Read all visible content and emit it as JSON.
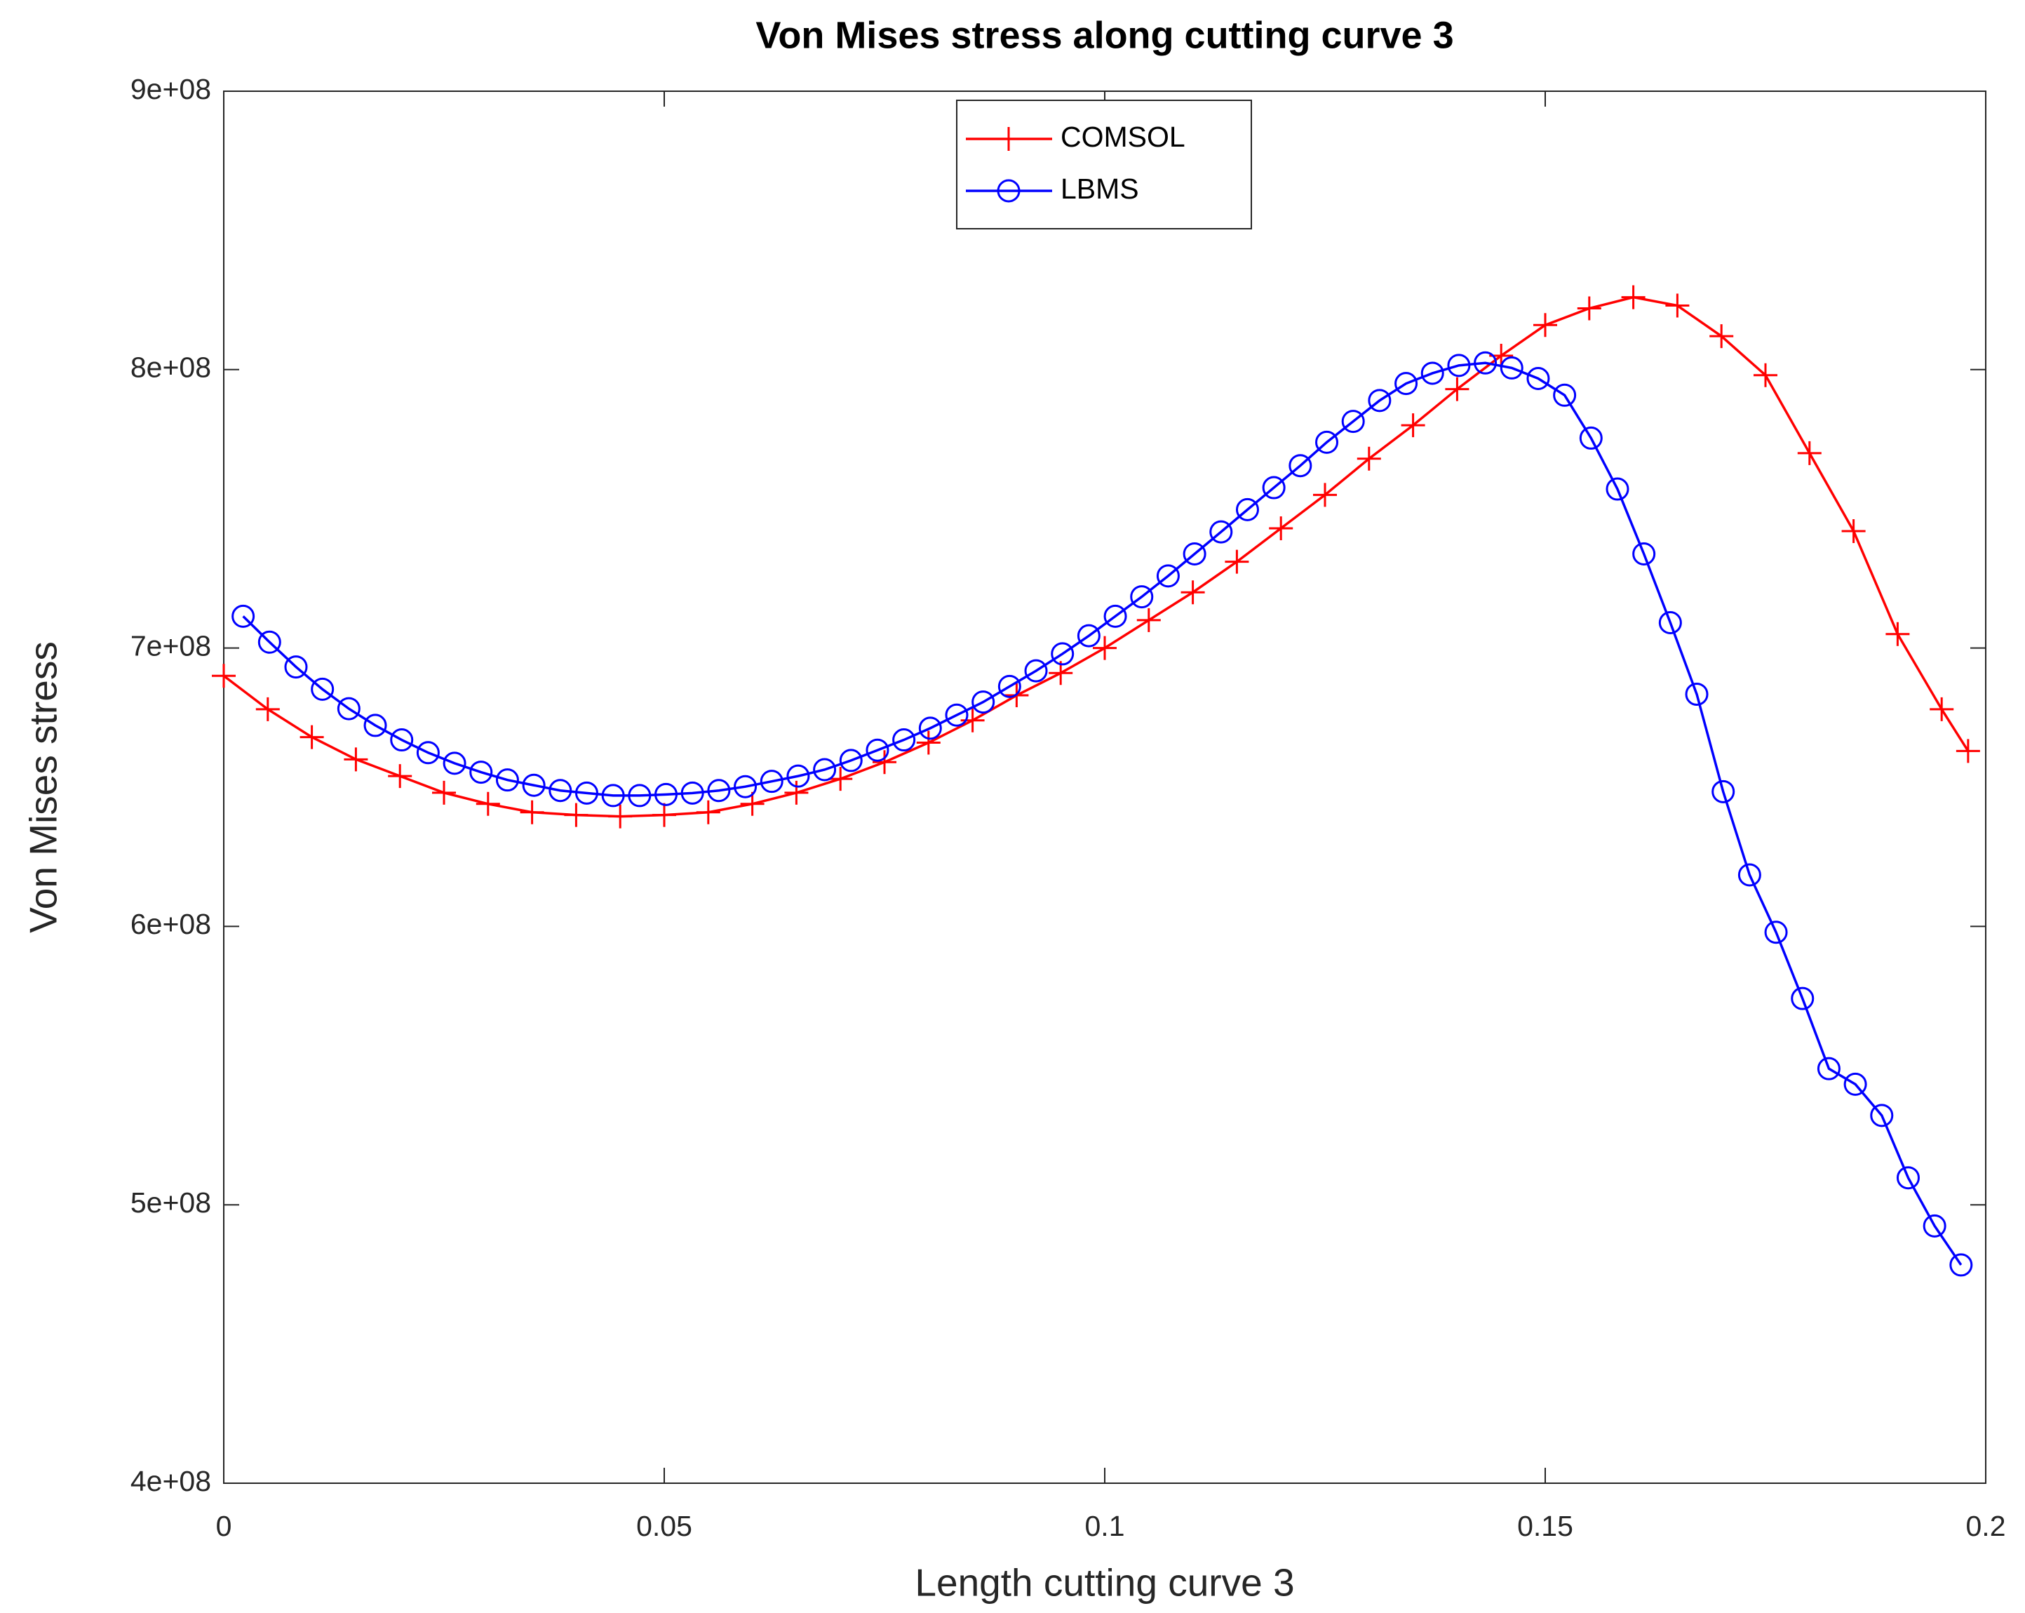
{
  "chart_data": {
    "type": "line",
    "title": "Von Mises stress along cutting curve 3",
    "x_label": "Length cutting curve 3",
    "y_label": "Von Mises stress",
    "xlim": [
      0,
      0.2
    ],
    "xticks": [
      0,
      0.05,
      0.1,
      0.15,
      0.2
    ],
    "ylim": [
      400000000.0,
      900000000.0
    ],
    "yticks": [
      {
        "value": 400000000.0,
        "label": "4e+08"
      },
      {
        "value": 500000000.0,
        "label": "5e+08"
      },
      {
        "value": 600000000.0,
        "label": "6e+08"
      },
      {
        "value": 700000000.0,
        "label": "7e+08"
      },
      {
        "value": 800000000.0,
        "label": "8e+08"
      },
      {
        "value": 900000000.0,
        "label": "9e+08"
      }
    ],
    "grid": false,
    "legend": "top-center",
    "series": [
      {
        "name": "COMSOL",
        "color": "#ff0000",
        "marker": "plus",
        "x": [
          0,
          0.005,
          0.01,
          0.015,
          0.02,
          0.025,
          0.03,
          0.035,
          0.04,
          0.045,
          0.05,
          0.055,
          0.06,
          0.065,
          0.07,
          0.075,
          0.08,
          0.085,
          0.09,
          0.095,
          0.1,
          0.105,
          0.11,
          0.115,
          0.12,
          0.125,
          0.13,
          0.135,
          0.14,
          0.145,
          0.15,
          0.155,
          0.16,
          0.165,
          0.17,
          0.175,
          0.18,
          0.185,
          0.19,
          0.195,
          0.198
        ],
        "values": [
          690000000.0,
          678000000.0,
          668000000.0,
          660000000.0,
          654000000.0,
          648000000.0,
          644000000.0,
          641000000.0,
          640000000.0,
          639500000.0,
          640000000.0,
          641000000.0,
          644000000.0,
          648000000.0,
          653000000.0,
          659000000.0,
          666000000.0,
          674000000.0,
          683000000.0,
          691000000.0,
          700000000.0,
          710000000.0,
          720000000.0,
          731000000.0,
          743000000.0,
          755000000.0,
          768000000.0,
          780000000.0,
          793000000.0,
          805000000.0,
          816000000.0,
          822000000.0,
          826000000.0,
          823000000.0,
          812000000.0,
          798000000.0,
          770000000.0,
          742000000.0,
          705000000.0,
          678000000.0,
          663000000.0
        ]
      },
      {
        "name": "LBMS",
        "color": "#0000ff",
        "marker": "circle",
        "x": [
          0.0022,
          0.0052,
          0.0082,
          0.0112,
          0.0142,
          0.0172,
          0.0202,
          0.0232,
          0.0262,
          0.0292,
          0.0322,
          0.0352,
          0.0382,
          0.0412,
          0.0442,
          0.0472,
          0.0502,
          0.0532,
          0.0562,
          0.0592,
          0.0622,
          0.0652,
          0.0682,
          0.0712,
          0.0742,
          0.0772,
          0.0802,
          0.0832,
          0.0862,
          0.0892,
          0.0922,
          0.0952,
          0.0982,
          0.1012,
          0.1042,
          0.1072,
          0.1102,
          0.1132,
          0.1162,
          0.1192,
          0.1222,
          0.1252,
          0.1282,
          0.1312,
          0.1342,
          0.1372,
          0.1402,
          0.1432,
          0.1462,
          0.1492,
          0.1522,
          0.1552,
          0.1582,
          0.1612,
          0.1642,
          0.1672,
          0.1702,
          0.1732,
          0.1762,
          0.1792,
          0.1822,
          0.1852,
          0.1882,
          0.1912,
          0.1942,
          0.1972
        ],
        "values": [
          711400000.0,
          702100000.0,
          693200000.0,
          685200000.0,
          678200000.0,
          672200000.0,
          667000000.0,
          662400000.0,
          658600000.0,
          655400000.0,
          652600000.0,
          650700000.0,
          648800000.0,
          647900000.0,
          647000000.0,
          647000000.0,
          647400000.0,
          647900000.0,
          648800000.0,
          650200000.0,
          652100000.0,
          654000000.0,
          656300000.0,
          659600000.0,
          663300000.0,
          667000000.0,
          671200000.0,
          675900000.0,
          680600000.0,
          686200000.0,
          691800000.0,
          697900000.0,
          704400000.0,
          711400000.0,
          718400000.0,
          725900000.0,
          733800000.0,
          741700000.0,
          749700000.0,
          757600000.0,
          765500000.0,
          773900000.0,
          781400000.0,
          788900000.0,
          795000000.0,
          798700000.0,
          801500000.0,
          802400000.0,
          800600000.0,
          796800000.0,
          790800000.0,
          775400000.0,
          757100000.0,
          733800000.0,
          709100000.0,
          683400000.0,
          648400000.0,
          618500000.0,
          597900000.0,
          574100000.0,
          548900000.0,
          543300000.0,
          532100000.0,
          509700000.0,
          492400000.0,
          478400000.0
        ]
      }
    ]
  }
}
